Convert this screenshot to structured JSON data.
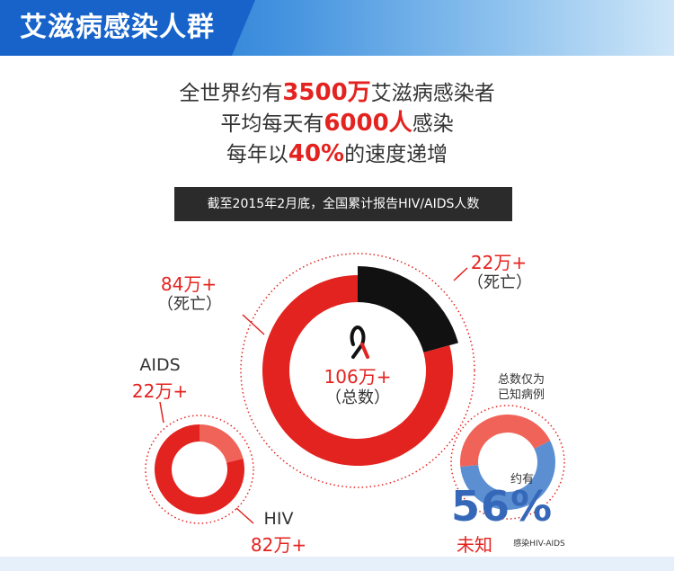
{
  "header": {
    "title": "艾滋病感染人群"
  },
  "stats": [
    {
      "pre": "全世界约有",
      "hl": "3500万",
      "post": "艾滋病感染者"
    },
    {
      "pre": "平均每天有",
      "hl": "6000人",
      "post": "感染"
    },
    {
      "pre": "每年以",
      "hl": "40%",
      "post": "的速度递增"
    }
  ],
  "caption": "截至2015年2月底，全国累计报告HIV/AIDS人数",
  "labels": {
    "death_big_value": "84万+",
    "death_big_text": "（死亡）",
    "death_small_value": "22万+",
    "death_small_text": "（死亡）",
    "total_value": "106万+",
    "total_text": "（总数）",
    "aids_name": "AIDS",
    "aids_value": "22万+",
    "hiv_name": "HIV",
    "hiv_value": "82万+",
    "known_line1": "总数仅为",
    "known_line2": "已知病例",
    "approx": "约有",
    "unknown_pct": "56%",
    "unknown_word": "未知",
    "unknown_suffix": "感染HIV-AIDS"
  },
  "colors": {
    "red": "#e3231f",
    "light_red": "#f06358",
    "black": "#111111",
    "blue": "#5b8fd2",
    "blue_text": "#3568b8",
    "header_blue": "#1763c9"
  },
  "chart_data": [
    {
      "type": "pie",
      "title": "",
      "center_label": "106万+（总数）",
      "slices": [
        {
          "name": "死亡",
          "value": 22,
          "unit": "万+"
        },
        {
          "name": "",
          "value": 84,
          "unit": "万+"
        }
      ]
    },
    {
      "type": "pie",
      "title": "",
      "slices": [
        {
          "name": "AIDS",
          "value": 22,
          "unit": "万+"
        },
        {
          "name": "HIV",
          "value": 82,
          "unit": "万+"
        }
      ]
    },
    {
      "type": "pie",
      "title": "",
      "slices": [
        {
          "name": "未知",
          "value": 56,
          "unit": "%"
        },
        {
          "name": "已知病例",
          "value": 44,
          "unit": "%"
        }
      ]
    }
  ]
}
